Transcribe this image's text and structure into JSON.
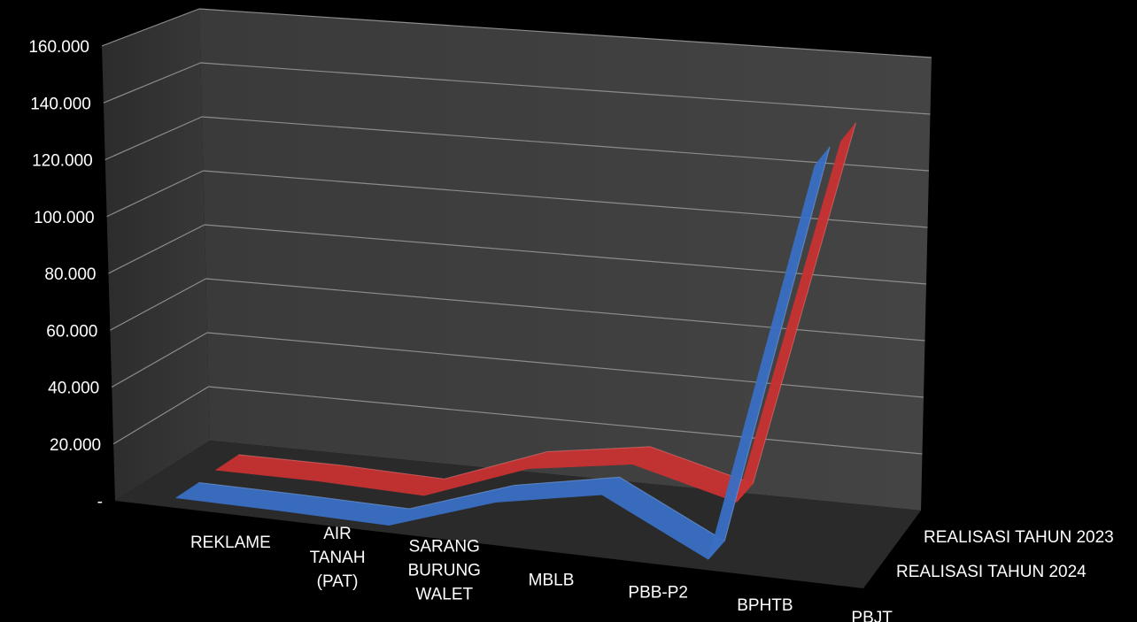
{
  "chart_data": {
    "type": "line",
    "style": "3d-ribbon",
    "categories": [
      [
        "REKLAME"
      ],
      [
        "AIR",
        "TANAH",
        "(PAT)"
      ],
      [
        "SARANG",
        "BURUNG",
        "WALET"
      ],
      [
        "MBLB"
      ],
      [
        "PBB-P2"
      ],
      [
        "BPHTB"
      ],
      [
        "PBJT"
      ]
    ],
    "y_ticks": [
      "-",
      "20.000",
      "40.000",
      "60.000",
      "80.000",
      "100.000",
      "120.000",
      "140.000",
      "160.000"
    ],
    "ylim": [
      0,
      160000
    ],
    "grid": true,
    "series": [
      {
        "name": "REALISASI TAHUN 2024",
        "color": "#3a6fc4",
        "values": [
          1500,
          1200,
          500,
          13000,
          20000,
          1500,
          145000
        ]
      },
      {
        "name": "REALISASI TAHUN 2023",
        "color": "#c83232",
        "values": [
          2000,
          2000,
          900,
          14500,
          20000,
          10500,
          142000
        ]
      }
    ]
  }
}
